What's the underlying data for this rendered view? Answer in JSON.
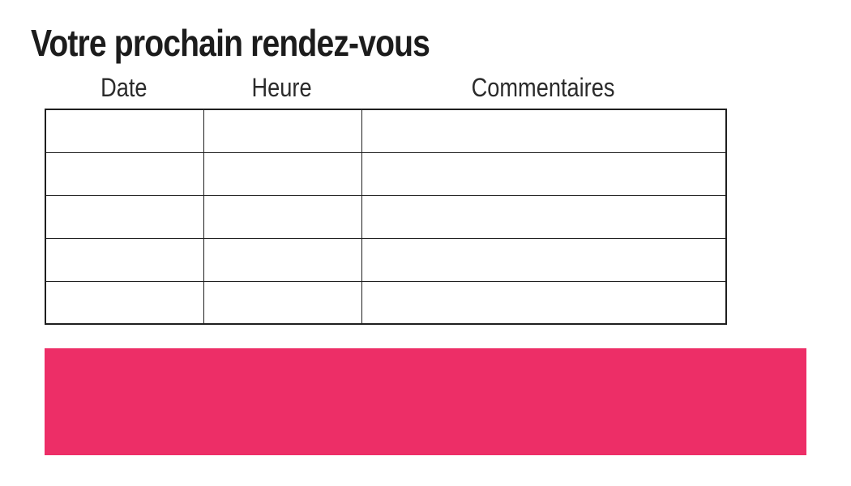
{
  "page": {
    "title": "Votre prochain rendez-vous",
    "background_color": "#ffffff"
  },
  "table": {
    "columns": [
      "Date",
      "Heure",
      "Commentaires"
    ],
    "rows": [
      [
        "",
        "",
        ""
      ],
      [
        "",
        "",
        ""
      ],
      [
        "",
        "",
        ""
      ],
      [
        "",
        "",
        ""
      ],
      [
        "",
        "",
        ""
      ]
    ],
    "border_color": "#1f1f1f"
  },
  "banner": {
    "color": "#ed2e67",
    "label": ""
  }
}
